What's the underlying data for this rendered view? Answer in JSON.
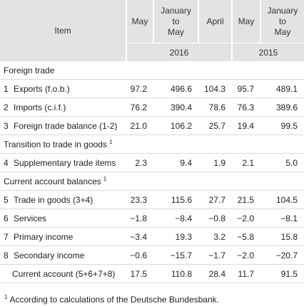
{
  "header": {
    "item": "Item",
    "columns": [
      [
        "May"
      ],
      [
        "January",
        "to",
        "May"
      ],
      [
        "April"
      ],
      [
        "May"
      ],
      [
        "January",
        "to",
        "May"
      ]
    ],
    "years": [
      "2016",
      "2015"
    ]
  },
  "sections": [
    {
      "title": "Foreign trade",
      "rows": [
        {
          "number": "1",
          "label": "Exports (f.o.b.)",
          "values": [
            "97.2",
            "496.6",
            "104.3",
            "95.7",
            "489.1"
          ]
        },
        {
          "number": "2",
          "label": "Imports (c.i.f.)",
          "values": [
            "76.2",
            "390.4",
            "78.6",
            "76.3",
            "389.6"
          ]
        },
        {
          "number": "3",
          "label": "Foreign trade balance (1-2)",
          "values": [
            "21.0",
            "106.2",
            "25.7",
            "19.4",
            "99.5"
          ]
        }
      ]
    },
    {
      "title": "Transition to trade in goods",
      "note": "1",
      "rows": [
        {
          "number": "4",
          "label": "Supplementary trade items",
          "values": [
            "2.3",
            "9.4",
            "1.9",
            "2.1",
            "5.0"
          ]
        }
      ]
    },
    {
      "title": "Current account balances",
      "note": "1",
      "rows": [
        {
          "number": "5",
          "label": "Trade in goods (3+4)",
          "values": [
            "23.3",
            "115.6",
            "27.7",
            "21.5",
            "104.5"
          ]
        },
        {
          "number": "6",
          "label": "Services",
          "values": [
            "−1.8",
            "−8.4",
            "−0.8",
            "−2.0",
            "−8.1"
          ]
        },
        {
          "number": "7",
          "label": "Primary income",
          "values": [
            "−3.4",
            "19.3",
            "3.2",
            "−5.8",
            "15.8"
          ]
        },
        {
          "number": "8",
          "label": "Secondary income",
          "values": [
            "−0.6",
            "−15.7",
            "−1.7",
            "−2.0",
            "−20.7"
          ]
        },
        {
          "label": "Current account (5+6+7+8)",
          "values": [
            "17.5",
            "110.8",
            "28.4",
            "11.7",
            "91.5"
          ]
        }
      ]
    }
  ],
  "footnote": {
    "mark": "1",
    "text": "According to calculations of the Deutsche Bundesbank."
  }
}
